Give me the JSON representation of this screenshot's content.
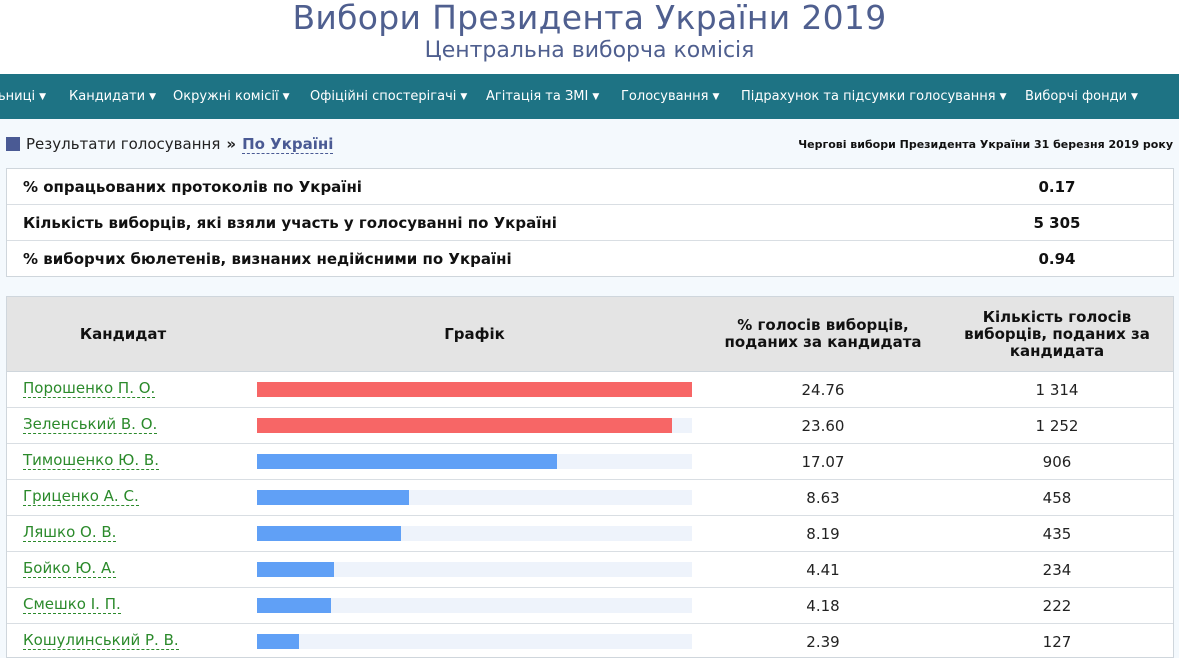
{
  "header": {
    "title": "Вибори Президента України 2019",
    "subtitle": "Центральна виборча комісія"
  },
  "nav": {
    "items": [
      {
        "label": "ьниці"
      },
      {
        "label": "Кандидати"
      },
      {
        "label": "Окружні комісії"
      },
      {
        "label": "Офіційні спостерігачі"
      },
      {
        "label": "Агітація та ЗМІ"
      },
      {
        "label": "Голосування"
      },
      {
        "label": "Підрахунок та підсумки голосування"
      },
      {
        "label": "Виборчі фонди"
      }
    ],
    "caret": "▼"
  },
  "breadcrumb": {
    "section": "Результати голосування",
    "separator": "»",
    "current": "По Україні"
  },
  "election_name": "Чергові вибори Президента України 31 березня 2019 року",
  "summary": {
    "rows": [
      {
        "label": "% опрацьованих протоколів по Україні",
        "value": "0.17"
      },
      {
        "label": "Кількість виборців, які взяли участь у голосуванні по Україні",
        "value": "5 305"
      },
      {
        "label": "% виборчих бюлетенів, визнаних недійсними по Україні",
        "value": "0.94"
      }
    ]
  },
  "results": {
    "headers": {
      "candidate": "Кандидат",
      "chart": "Графік",
      "percent": "% голосів виборців, поданих за кандидата",
      "votes": "Кількість голосів виборців, поданих за кандидата"
    },
    "colors": {
      "leader": "#f76666",
      "other": "#60a0f6",
      "track": "#eef3fb"
    },
    "rows": [
      {
        "name": "Порошенко П. О.",
        "percent": "24.76",
        "votes": "1 314",
        "bar_fraction": 1.0,
        "leader": true
      },
      {
        "name": "Зеленський В. О.",
        "percent": "23.60",
        "votes": "1 252",
        "bar_fraction": 0.953,
        "leader": true
      },
      {
        "name": "Тимошенко Ю. В.",
        "percent": "17.07",
        "votes": "906",
        "bar_fraction": 0.689,
        "leader": false
      },
      {
        "name": "Гриценко А. С.",
        "percent": "8.63",
        "votes": "458",
        "bar_fraction": 0.349,
        "leader": false
      },
      {
        "name": "Ляшко О. В.",
        "percent": "8.19",
        "votes": "435",
        "bar_fraction": 0.331,
        "leader": false
      },
      {
        "name": "Бойко Ю. А.",
        "percent": "4.41",
        "votes": "234",
        "bar_fraction": 0.178,
        "leader": false
      },
      {
        "name": "Смешко І. П.",
        "percent": "4.18",
        "votes": "222",
        "bar_fraction": 0.169,
        "leader": false
      },
      {
        "name": "Кошулинський Р. В.",
        "percent": "2.39",
        "votes": "127",
        "bar_fraction": 0.097,
        "leader": false
      }
    ]
  }
}
